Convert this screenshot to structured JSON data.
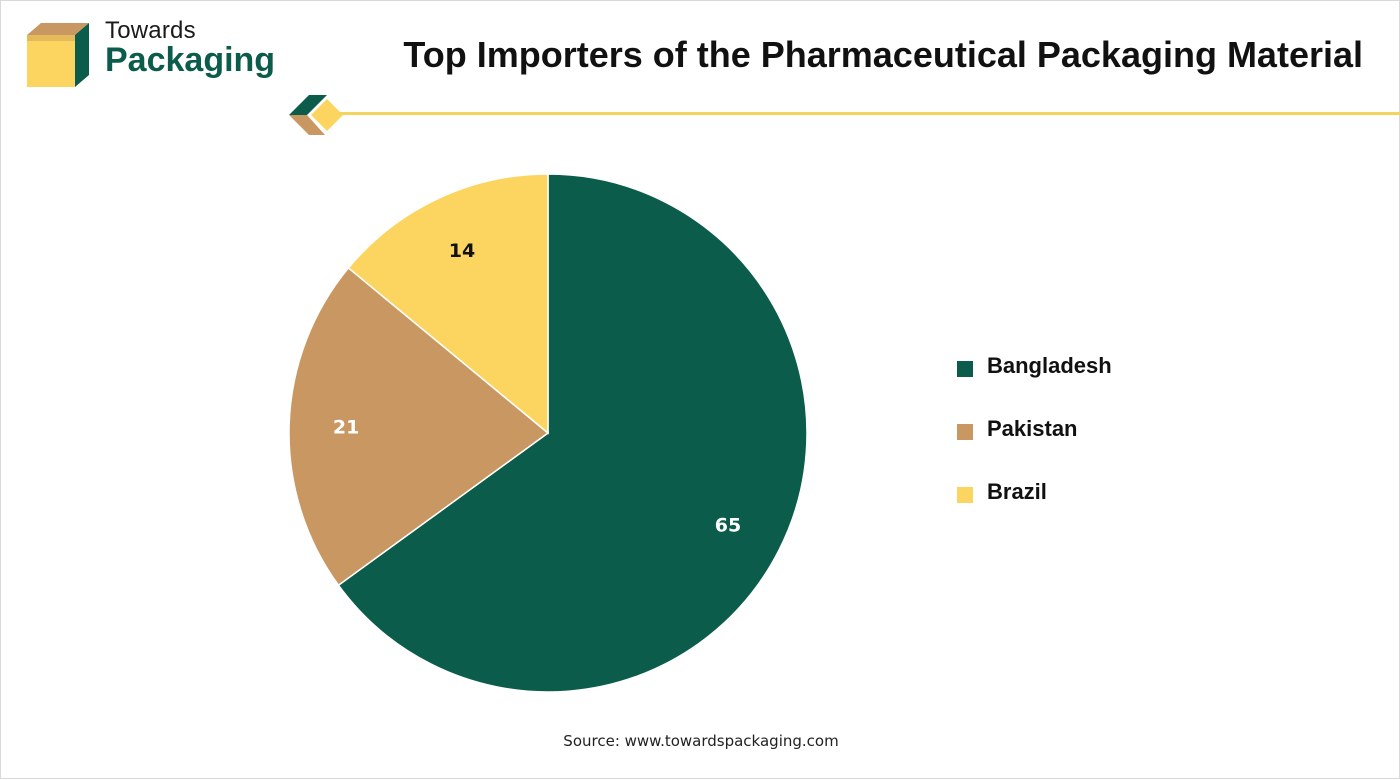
{
  "brand": {
    "name_top": "Towards",
    "name_bottom": "Packaging"
  },
  "header": {
    "title": "Top Importers of the Pharmaceutical Packaging Material"
  },
  "colors": {
    "green": "#0b5c4a",
    "tan": "#c99762",
    "yellow": "#fcd561",
    "rule": "#f4d35e"
  },
  "chart_data": {
    "type": "pie",
    "title": "Top Importers of the Pharmaceutical Packaging Material",
    "categories": [
      "Bangladesh",
      "Pakistan",
      "Brazil"
    ],
    "values": [
      65,
      21,
      14
    ],
    "colors": [
      "#0b5c4a",
      "#c99762",
      "#fcd561"
    ],
    "label_colors": [
      "#ffffff",
      "#ffffff",
      "#111111"
    ],
    "legend_position": "right",
    "start": "12 o'clock, clockwise"
  },
  "footer": {
    "source": "Source: www.towardspackaging.com"
  }
}
